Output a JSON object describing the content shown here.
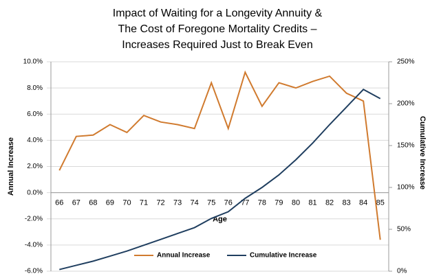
{
  "chart_data": {
    "type": "line",
    "title": [
      "Impact of Waiting for a Longevity Annuity &",
      "The Cost of Foregone Mortality Credits –",
      "Increases Required Just to Break Even"
    ],
    "x_label": "Age",
    "y_label": "Annual Increase",
    "y2_label": "Cumulative Increase",
    "categories": [
      "66",
      "67",
      "68",
      "69",
      "70",
      "71",
      "72",
      "73",
      "74",
      "75",
      "76",
      "77",
      "78",
      "79",
      "80",
      "81",
      "82",
      "83",
      "84",
      "85"
    ],
    "series": [
      {
        "name": "Annual Increase",
        "color": "#d07a2e",
        "values": [
          1.7,
          4.3,
          4.4,
          5.2,
          4.6,
          5.9,
          5.4,
          5.2,
          4.9,
          8.4,
          4.9,
          9.2,
          6.6,
          8.4,
          8.0,
          8.5,
          8.9,
          7.6,
          7.0,
          -3.6
        ]
      },
      {
        "name": "Cumulative Increase",
        "color": "#1f3e5f",
        "axis": "y2",
        "values": [
          2,
          7,
          12,
          18,
          24,
          31,
          38,
          45,
          52,
          63,
          71,
          87,
          100,
          115,
          133,
          153,
          175,
          196,
          217,
          206
        ]
      }
    ],
    "ylim": [
      -6,
      10
    ],
    "yticks": [
      {
        "value": -6,
        "label": "-6.0%"
      },
      {
        "value": -4,
        "label": "-4.0%"
      },
      {
        "value": -2,
        "label": "-2.0%"
      },
      {
        "value": 0,
        "label": "0.0%"
      },
      {
        "value": 2,
        "label": "2.0%"
      },
      {
        "value": 4,
        "label": "4.0%"
      },
      {
        "value": 6,
        "label": "6.0%"
      },
      {
        "value": 8,
        "label": "8.0%"
      },
      {
        "value": 10,
        "label": "10.0%"
      }
    ],
    "y2lim": [
      0,
      250
    ],
    "y2ticks": [
      {
        "value": 0,
        "label": "0%"
      },
      {
        "value": 50,
        "label": "50%"
      },
      {
        "value": 100,
        "label": "100%"
      },
      {
        "value": 150,
        "label": "150%"
      },
      {
        "value": 200,
        "label": "200%"
      },
      {
        "value": 250,
        "label": "250%"
      }
    ],
    "grid": true,
    "legend": "bottom"
  }
}
